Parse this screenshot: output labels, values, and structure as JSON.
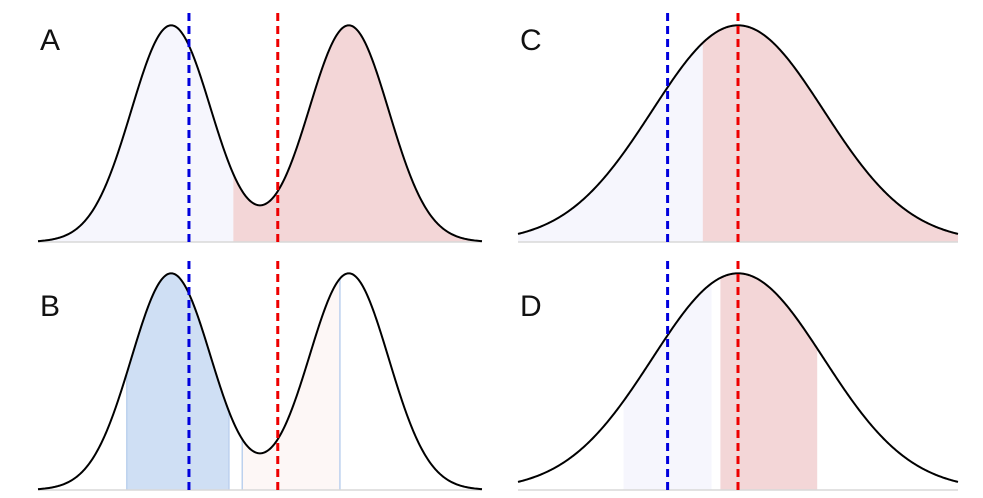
{
  "colors": {
    "curve": "#000000",
    "baseline": "#d8d8d8",
    "blue_line": "#0000dd",
    "red_line": "#ee0000",
    "shade_lavender": "#f6f6fd",
    "shade_pink": "#f3d6d7",
    "shade_blue": "#cfdff4",
    "shade_pale_pink": "#fdf7f6",
    "shade_pale_blue_edge": "#bcd1ee"
  },
  "chart_data": [
    {
      "id": "A",
      "label": "A",
      "type": "area",
      "title": "",
      "xlim": [
        0,
        10
      ],
      "ylim": [
        0,
        1.08
      ],
      "curve": "bimodal",
      "components": [
        {
          "mu": 3.0,
          "sigma": 0.9,
          "weight": 1.0
        },
        {
          "mu": 7.0,
          "sigma": 0.9,
          "weight": 1.0
        }
      ],
      "regions": [
        {
          "x": [
            0,
            4.4
          ],
          "color": "#f6f6fd"
        },
        {
          "x": [
            4.4,
            10
          ],
          "color": "#f3d6d7"
        }
      ],
      "vlines": [
        {
          "x": 3.4,
          "color": "#0000dd"
        },
        {
          "x": 5.4,
          "color": "#ee0000"
        }
      ]
    },
    {
      "id": "B",
      "label": "B",
      "type": "area",
      "title": "",
      "xlim": [
        0,
        10
      ],
      "ylim": [
        0,
        1.08
      ],
      "curve": "bimodal",
      "components": [
        {
          "mu": 3.0,
          "sigma": 0.9,
          "weight": 1.0
        },
        {
          "mu": 7.0,
          "sigma": 0.9,
          "weight": 1.0
        }
      ],
      "regions": [
        {
          "x": [
            2.0,
            4.3
          ],
          "color": "#cfdff4",
          "edge": "#bcd1ee"
        },
        {
          "x": [
            4.6,
            6.8
          ],
          "color": "#fdf7f6",
          "edge": "#bcd1ee"
        }
      ],
      "vlines": [
        {
          "x": 3.4,
          "color": "#0000dd"
        },
        {
          "x": 5.4,
          "color": "#ee0000"
        }
      ]
    },
    {
      "id": "C",
      "label": "C",
      "type": "area",
      "title": "",
      "xlim": [
        0,
        10
      ],
      "ylim": [
        0,
        1.08
      ],
      "curve": "normal",
      "components": [
        {
          "mu": 5.0,
          "sigma": 1.95,
          "weight": 1.0
        }
      ],
      "regions": [
        {
          "x": [
            0,
            4.2
          ],
          "color": "#f6f6fd"
        },
        {
          "x": [
            4.2,
            10
          ],
          "color": "#f3d6d7"
        }
      ],
      "vlines": [
        {
          "x": 3.4,
          "color": "#0000dd"
        },
        {
          "x": 5.0,
          "color": "#ee0000"
        }
      ]
    },
    {
      "id": "D",
      "label": "D",
      "type": "area",
      "title": "",
      "xlim": [
        0,
        10
      ],
      "ylim": [
        0,
        1.08
      ],
      "curve": "normal",
      "components": [
        {
          "mu": 5.0,
          "sigma": 1.95,
          "weight": 1.0
        }
      ],
      "regions": [
        {
          "x": [
            2.4,
            4.4
          ],
          "color": "#f6f6fd"
        },
        {
          "x": [
            4.6,
            6.8
          ],
          "color": "#f3d6d7"
        }
      ],
      "vlines": [
        {
          "x": 3.4,
          "color": "#0000dd"
        },
        {
          "x": 5.0,
          "color": "#ee0000"
        }
      ]
    }
  ]
}
